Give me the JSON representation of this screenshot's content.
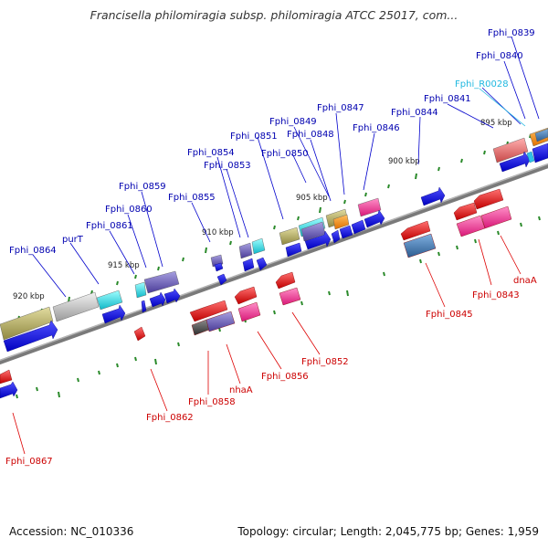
{
  "title": "Francisella philomiragia subsp. philomiragia ATCC 25017, com...",
  "footer": {
    "accession": "Accession: NC_010336",
    "summary": "Topology: circular; Length: 2,045,775 bp; Genes: 1,959"
  },
  "colors": {
    "forward": "#0000e0",
    "reverse": "#e00000",
    "rna": "#20b0d0",
    "backbone": "#8a8a8a",
    "tick": "#2a8a2a"
  },
  "scale_labels": [
    "920 kbp",
    "915 kbp",
    "910 kbp",
    "905 kbp",
    "900 kbp",
    "895 kbp"
  ],
  "forward_labels": [
    "Fphi_0839",
    "Fphi_0840",
    "Fphi_R0028",
    "Fphi_0841",
    "Fphi_0844",
    "Fphi_0846",
    "Fphi_0847",
    "Fphi_0849",
    "Fphi_0848",
    "Fphi_0851",
    "Fphi_0850",
    "Fphi_0854",
    "Fphi_0853",
    "Fphi_0855",
    "Fphi_0859",
    "Fphi_0860",
    "Fphi_0861",
    "purT",
    "Fphi_0864"
  ],
  "reverse_labels": [
    "dnaA",
    "Fphi_0843",
    "Fphi_0845",
    "Fphi_0852",
    "Fphi_0856",
    "nhaA",
    "Fphi_0858",
    "Fphi_0862",
    "Fphi_0867"
  ]
}
